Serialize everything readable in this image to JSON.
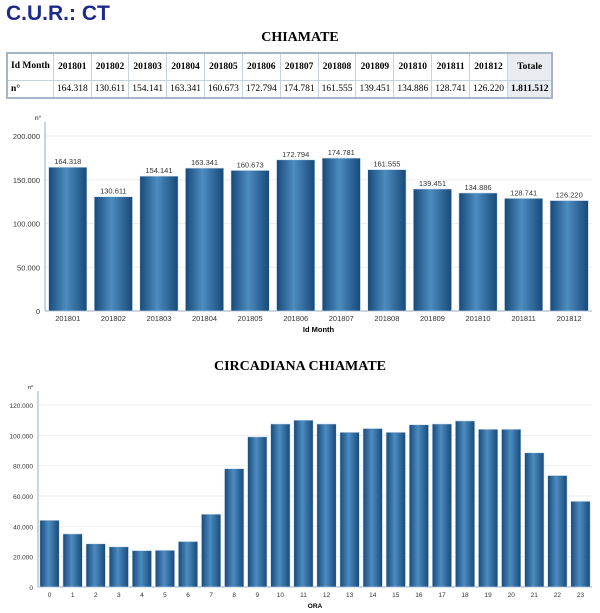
{
  "header": {
    "title": "C.U.R.: CT"
  },
  "table": {
    "title": "CHIAMATE",
    "row_header": "Id Month",
    "row_label": "n°",
    "columns": [
      "201801",
      "201802",
      "201803",
      "201804",
      "201805",
      "201806",
      "201807",
      "201808",
      "201809",
      "201810",
      "201811",
      "201812",
      "Totale"
    ],
    "values": [
      "164.318",
      "130.611",
      "154.141",
      "163.341",
      "160.673",
      "172.794",
      "174.781",
      "161.555",
      "139.451",
      "134.886",
      "128.741",
      "126.220",
      "1.811.512"
    ]
  },
  "chart_data": [
    {
      "type": "bar",
      "title": "",
      "xlabel": "Id Month",
      "ylabel": "n°",
      "ylim": [
        0,
        200000
      ],
      "yticks": [
        "0",
        "50.000",
        "100.000",
        "150.000",
        "200.000"
      ],
      "categories": [
        "201801",
        "201802",
        "201803",
        "201804",
        "201805",
        "201806",
        "201807",
        "201808",
        "201809",
        "201810",
        "201811",
        "201812"
      ],
      "values": [
        164318,
        130611,
        154141,
        163341,
        160673,
        172794,
        174781,
        161555,
        139451,
        134886,
        128741,
        126220
      ],
      "labels": [
        "164.318",
        "130.611",
        "154.141",
        "163.341",
        "160.673",
        "172.794",
        "174.781",
        "161.555",
        "139.451",
        "134.886",
        "128.741",
        "126.220"
      ],
      "color": "#1f5f9a"
    },
    {
      "type": "bar",
      "title": "CIRCADIANA CHIAMATE",
      "xlabel": "ORA",
      "ylabel": "n°",
      "ylim": [
        0,
        120000
      ],
      "yticks": [
        "0",
        "20.000",
        "40.000",
        "60.000",
        "80.000",
        "100.000",
        "120.000"
      ],
      "categories": [
        "0",
        "1",
        "2",
        "3",
        "4",
        "5",
        "6",
        "7",
        "8",
        "9",
        "10",
        "11",
        "12",
        "13",
        "14",
        "15",
        "16",
        "17",
        "18",
        "19",
        "20",
        "21",
        "22",
        "23"
      ],
      "values": [
        44000,
        35000,
        28500,
        26500,
        24000,
        24200,
        30000,
        48000,
        78000,
        99000,
        107500,
        110000,
        107500,
        102000,
        104500,
        102000,
        107000,
        107500,
        109500,
        104000,
        104000,
        88500,
        73500,
        56500
      ],
      "color": "#1f5f9a"
    }
  ]
}
